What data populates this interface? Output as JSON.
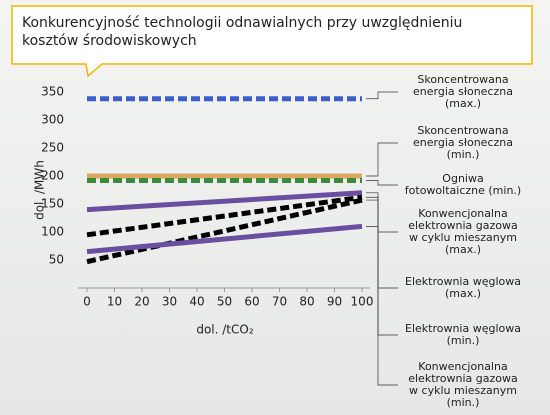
{
  "chart_data": {
    "type": "line",
    "title": "Konkurencyjność technologii odnawialnych przy uwzględnieniu kosztów środowiskowych",
    "x_label": "dol. /tCO₂",
    "y_label": "dol. /MWh",
    "x": [
      0,
      100
    ],
    "series": [
      {
        "name": "Skoncentrowana energia słoneczna (max.)",
        "color": "#3a5fc8",
        "dash": true,
        "values": [
          338,
          338
        ]
      },
      {
        "name": "Skoncentrowana energia słoneczna (min.)",
        "color": "#d9a860",
        "dash": false,
        "values": [
          200,
          200
        ]
      },
      {
        "name": "Ogniwa fotowoltaiczne (min.)",
        "color": "#3c8a3c",
        "dash": true,
        "values": [
          192,
          192
        ]
      },
      {
        "name": "Konwencjonalna elektrownia gazowa w cyklu mieszanym (max.)",
        "color": "#6a4fa0",
        "dash": false,
        "values": [
          140,
          170
        ]
      },
      {
        "name": "Elektrownia węglowa (max.)",
        "color": "#000000",
        "dash": true,
        "values": [
          95,
          162
        ]
      },
      {
        "name": "Elektrownia węglowa (min.)",
        "color": "#000000",
        "dash": true,
        "values": [
          47,
          157
        ]
      },
      {
        "name": "Konwencjonalna elektrownia gazowa w cyklu mieszanym (min.)",
        "color": "#6a4fa0",
        "dash": false,
        "values": [
          65,
          110
        ]
      }
    ],
    "xlim": [
      0,
      100
    ],
    "xticks": [
      0,
      10,
      20,
      30,
      40,
      50,
      60,
      70,
      80,
      90,
      100
    ],
    "ylim": [
      0,
      350
    ],
    "yticks": [
      50,
      100,
      150,
      200,
      250,
      300,
      350
    ]
  }
}
